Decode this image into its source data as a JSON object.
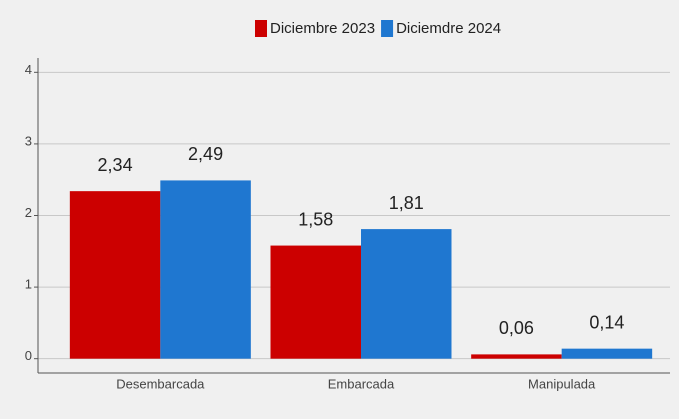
{
  "chart_data": {
    "type": "bar",
    "categories": [
      "Desembarcada",
      "Embarcada",
      "Manipulada"
    ],
    "series": [
      {
        "name": "Diciembre 2023",
        "color": "#cc0000",
        "values": [
          2.34,
          1.58,
          0.06
        ],
        "value_labels": [
          "2,34",
          "1,58",
          "0,06"
        ]
      },
      {
        "name": "Diciemdre 2024",
        "color": "#1f77d0",
        "values": [
          2.49,
          1.81,
          0.14
        ],
        "value_labels": [
          "2,49",
          "1,81",
          "0,14"
        ]
      }
    ],
    "ylim": [
      -0.2,
      4.2
    ],
    "yticks": [
      0,
      1,
      2,
      3,
      4
    ],
    "grid": true,
    "legend": "top"
  }
}
